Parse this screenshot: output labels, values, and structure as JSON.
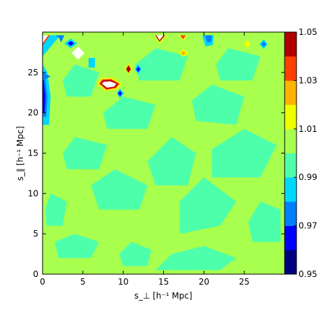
{
  "chart_data": {
    "type": "heatmap",
    "title": "",
    "xlabel": "s_⊥ [h⁻¹ Mpc]",
    "ylabel": "s_∥ [h⁻¹ Mpc]",
    "xlim": [
      0,
      30
    ],
    "ylim": [
      0,
      30
    ],
    "x_ticks": [
      0,
      5,
      10,
      15,
      20,
      25
    ],
    "y_ticks": [
      0,
      5,
      10,
      15,
      20,
      25
    ],
    "x_tick_labels": [
      "0",
      "5",
      "10",
      "15",
      "20",
      "25"
    ],
    "y_tick_labels": [
      "0",
      "5",
      "10",
      "15",
      "20",
      "25"
    ],
    "grid": false,
    "colormap": "jet",
    "colorbar": {
      "position": "right",
      "levels": [
        0.95,
        0.96,
        0.97,
        0.98,
        0.99,
        1.0,
        1.01,
        1.02,
        1.03,
        1.04,
        1.05
      ],
      "tick_labels": [
        "0.95",
        "0.97",
        "0.99",
        "1.01",
        "1.03",
        "1.05"
      ],
      "tick_values": [
        0.95,
        0.97,
        0.99,
        1.01,
        1.03,
        1.05
      ],
      "colors": [
        "#00007f",
        "#0000ff",
        "#0080ff",
        "#00d7ff",
        "#4dffaa",
        "#a9ff4e",
        "#f0ff00",
        "#ffb300",
        "#ff4000",
        "#b20000"
      ]
    },
    "background_level": 1.0,
    "regions": [
      {
        "band": [
          0.99,
          1.0
        ],
        "polygon": [
          [
            14,
            0.5
          ],
          [
            22,
            0.5
          ],
          [
            24,
            2
          ],
          [
            20,
            3.5
          ],
          [
            16,
            2.5
          ]
        ]
      },
      {
        "band": [
          0.99,
          1.0
        ],
        "polygon": [
          [
            2,
            2
          ],
          [
            6,
            2
          ],
          [
            7,
            4
          ],
          [
            4,
            5
          ],
          [
            1.5,
            4
          ]
        ]
      },
      {
        "band": [
          0.99,
          1.0
        ],
        "polygon": [
          [
            17,
            5
          ],
          [
            22,
            6
          ],
          [
            24,
            9
          ],
          [
            20,
            12
          ],
          [
            17,
            9
          ]
        ]
      },
      {
        "band": [
          0.99,
          1.0
        ],
        "polygon": [
          [
            7,
            8
          ],
          [
            12,
            8
          ],
          [
            13,
            11
          ],
          [
            9,
            13
          ],
          [
            6,
            11
          ]
        ]
      },
      {
        "band": [
          0.99,
          1.0
        ],
        "polygon": [
          [
            14,
            11
          ],
          [
            18,
            11
          ],
          [
            19,
            15
          ],
          [
            16,
            17
          ],
          [
            13,
            14
          ]
        ]
      },
      {
        "band": [
          0.99,
          1.0
        ],
        "polygon": [
          [
            21,
            12
          ],
          [
            27,
            12
          ],
          [
            29,
            16
          ],
          [
            25,
            18
          ],
          [
            21,
            15.5
          ]
        ]
      },
      {
        "band": [
          0.99,
          1.0
        ],
        "polygon": [
          [
            3,
            13
          ],
          [
            7,
            13
          ],
          [
            8,
            16
          ],
          [
            4,
            17
          ],
          [
            2.5,
            15
          ]
        ]
      },
      {
        "band": [
          0.99,
          1.0
        ],
        "polygon": [
          [
            8,
            18
          ],
          [
            13,
            18
          ],
          [
            14,
            21
          ],
          [
            10,
            22
          ],
          [
            7.5,
            20
          ]
        ]
      },
      {
        "band": [
          0.99,
          1.0
        ],
        "polygon": [
          [
            19,
            19
          ],
          [
            24,
            18.5
          ],
          [
            25,
            22
          ],
          [
            21,
            23.5
          ],
          [
            18.5,
            21.5
          ]
        ]
      },
      {
        "band": [
          0.99,
          1.0
        ],
        "polygon": [
          [
            26,
            4
          ],
          [
            29.5,
            4
          ],
          [
            29.5,
            8
          ],
          [
            27,
            9
          ],
          [
            25.5,
            6.5
          ]
        ]
      },
      {
        "band": [
          0.99,
          1.0
        ],
        "polygon": [
          [
            3,
            22
          ],
          [
            6,
            22
          ],
          [
            7,
            25
          ],
          [
            4,
            26
          ],
          [
            2.5,
            24
          ]
        ]
      },
      {
        "band": [
          0.99,
          1.0
        ],
        "polygon": [
          [
            12,
            24
          ],
          [
            17,
            24
          ],
          [
            18,
            27
          ],
          [
            14,
            28
          ],
          [
            11.5,
            26
          ]
        ]
      },
      {
        "band": [
          0.99,
          1.0
        ],
        "polygon": [
          [
            22,
            24
          ],
          [
            26,
            24
          ],
          [
            27,
            27
          ],
          [
            23,
            28
          ],
          [
            21.5,
            26
          ]
        ]
      },
      {
        "band": [
          0.99,
          1.0
        ],
        "polygon": [
          [
            0.5,
            6
          ],
          [
            2.5,
            6
          ],
          [
            3,
            9
          ],
          [
            1,
            10
          ],
          [
            0.3,
            8
          ]
        ]
      },
      {
        "band": [
          0.99,
          1.0
        ],
        "polygon": [
          [
            10,
            1
          ],
          [
            13,
            1
          ],
          [
            13.5,
            3
          ],
          [
            11,
            4
          ],
          [
            9.5,
            2.5
          ]
        ]
      },
      {
        "band": [
          0.98,
          0.99
        ],
        "polygon": [
          [
            0.0,
            18.5
          ],
          [
            0.8,
            18.5
          ],
          [
            1.0,
            22
          ],
          [
            0.6,
            25
          ],
          [
            0.0,
            26
          ]
        ]
      },
      {
        "band": [
          0.97,
          0.98
        ],
        "polygon": [
          [
            0.0,
            19.5
          ],
          [
            0.45,
            19.5
          ],
          [
            0.6,
            22
          ],
          [
            0.3,
            24.5
          ],
          [
            0.0,
            25
          ]
        ]
      },
      {
        "band": [
          0.96,
          0.97
        ],
        "polygon": [
          [
            0.0,
            20
          ],
          [
            0.25,
            20
          ],
          [
            0.35,
            22
          ],
          [
            0.15,
            24
          ],
          [
            0.0,
            24.5
          ]
        ]
      },
      {
        "band": [
          0.97,
          0.98
        ],
        "polygon": [
          [
            0.0,
            24
          ],
          [
            1.0,
            24.5
          ],
          [
            0.0,
            25
          ]
        ]
      },
      {
        "band": [
          0.98,
          0.99
        ],
        "polygon": [
          [
            0.0,
            27
          ],
          [
            2.2,
            29.6
          ],
          [
            0.0,
            29.6
          ]
        ]
      },
      {
        "band": [
          1.03,
          1.04
        ],
        "polygon": [
          [
            0.0,
            28.3
          ],
          [
            0.9,
            29.6
          ],
          [
            0.0,
            29.6
          ]
        ]
      },
      {
        "band": [
          0.97,
          0.98
        ],
        "polygon": [
          [
            1.6,
            29.6
          ],
          [
            2.2,
            29.2
          ],
          [
            2.5,
            29.6
          ]
        ]
      },
      {
        "band": [
          0.98,
          0.99
        ],
        "polygon": [
          [
            2.7,
            28.6
          ],
          [
            3.5,
            28.0
          ],
          [
            4.3,
            28.6
          ],
          [
            3.5,
            29.2
          ]
        ]
      },
      {
        "band": [
          0.96,
          0.97
        ],
        "polygon": [
          [
            3.1,
            28.6
          ],
          [
            3.5,
            28.3
          ],
          [
            3.9,
            28.6
          ],
          [
            3.5,
            28.9
          ]
        ]
      },
      {
        "band": [
          0.98,
          0.99
        ],
        "polygon": [
          [
            5.7,
            26.8
          ],
          [
            6.5,
            26.8
          ],
          [
            6.5,
            25.6
          ],
          [
            5.7,
            25.6
          ]
        ]
      },
      {
        "band": [
          1.01,
          1.02
        ],
        "polygon": [
          [
            6.8,
            23.6
          ],
          [
            7.8,
            22.7
          ],
          [
            9.2,
            22.9
          ],
          [
            9.8,
            23.6
          ],
          [
            8.6,
            24.4
          ],
          [
            7.3,
            24.3
          ]
        ]
      },
      {
        "band": [
          1.03,
          1.04
        ],
        "polygon": [
          [
            7.0,
            23.6
          ],
          [
            7.9,
            22.85
          ],
          [
            9.1,
            23.05
          ],
          [
            9.55,
            23.6
          ],
          [
            8.5,
            24.2
          ],
          [
            7.4,
            24.15
          ]
        ]
      },
      {
        "band": [
          1.04,
          1.05
        ],
        "polygon": [
          [
            7.15,
            23.6
          ],
          [
            7.95,
            22.95
          ],
          [
            9.0,
            23.15
          ],
          [
            9.35,
            23.6
          ],
          [
            8.45,
            24.05
          ],
          [
            7.5,
            24.0
          ]
        ]
      },
      {
        "band": [
          0.98,
          0.99
        ],
        "polygon": [
          [
            9.2,
            22.4
          ],
          [
            9.6,
            21.8
          ],
          [
            10.1,
            22.4
          ],
          [
            9.6,
            23.0
          ]
        ]
      },
      {
        "band": [
          0.96,
          0.97
        ],
        "polygon": [
          [
            9.35,
            22.4
          ],
          [
            9.6,
            22.05
          ],
          [
            9.85,
            22.4
          ],
          [
            9.6,
            22.75
          ]
        ]
      },
      {
        "band": [
          1.01,
          1.02
        ],
        "polygon": [
          [
            10.2,
            25.4
          ],
          [
            10.65,
            24.8
          ],
          [
            11.1,
            25.4
          ],
          [
            10.65,
            26.1
          ]
        ]
      },
      {
        "band": [
          1.04,
          1.05
        ],
        "polygon": [
          [
            10.35,
            25.4
          ],
          [
            10.65,
            24.95
          ],
          [
            10.95,
            25.4
          ],
          [
            10.65,
            25.9
          ]
        ]
      },
      {
        "band": [
          0.98,
          0.99
        ],
        "polygon": [
          [
            11.4,
            25.4
          ],
          [
            11.85,
            24.8
          ],
          [
            12.3,
            25.4
          ],
          [
            11.85,
            26.0
          ]
        ]
      },
      {
        "band": [
          0.96,
          0.97
        ],
        "polygon": [
          [
            11.6,
            25.4
          ],
          [
            11.85,
            25.05
          ],
          [
            12.1,
            25.4
          ],
          [
            11.85,
            25.75
          ]
        ]
      },
      {
        "band": [
          1.01,
          1.02
        ],
        "polygon": [
          [
            13.8,
            29.6
          ],
          [
            14.5,
            28.6
          ],
          [
            15.4,
            29.6
          ]
        ]
      },
      {
        "band": [
          1.04,
          1.05
        ],
        "polygon": [
          [
            13.95,
            29.6
          ],
          [
            14.5,
            28.8
          ],
          [
            15.2,
            29.6
          ]
        ]
      },
      {
        "band": [
          1.01,
          1.02
        ],
        "polygon": [
          [
            16.9,
            29.6
          ],
          [
            17.4,
            28.9
          ],
          [
            17.9,
            29.6
          ]
        ]
      },
      {
        "band": [
          1.03,
          1.04
        ],
        "polygon": [
          [
            17.05,
            29.6
          ],
          [
            17.4,
            29.1
          ],
          [
            17.75,
            29.6
          ]
        ]
      },
      {
        "band": [
          1.01,
          1.02
        ],
        "polygon": [
          [
            16.9,
            27.4
          ],
          [
            17.45,
            26.9
          ],
          [
            18.0,
            27.4
          ],
          [
            17.45,
            27.9
          ]
        ]
      },
      {
        "band": [
          1.02,
          1.03
        ],
        "polygon": [
          [
            17.15,
            27.4
          ],
          [
            17.45,
            27.1
          ],
          [
            17.75,
            27.4
          ],
          [
            17.45,
            27.7
          ]
        ]
      },
      {
        "band": [
          0.98,
          0.99
        ],
        "polygon": [
          [
            19.8,
            29.6
          ],
          [
            20.2,
            28.2
          ],
          [
            21.1,
            28.4
          ],
          [
            21.2,
            29.6
          ]
        ]
      },
      {
        "band": [
          0.97,
          0.98
        ],
        "polygon": [
          [
            20.1,
            29.6
          ],
          [
            20.4,
            28.7
          ],
          [
            20.9,
            28.8
          ],
          [
            21.0,
            29.6
          ]
        ]
      },
      {
        "band": [
          1.01,
          1.02
        ],
        "polygon": [
          [
            24.9,
            28.5
          ],
          [
            25.35,
            28.0
          ],
          [
            25.8,
            28.5
          ],
          [
            25.35,
            29.0
          ]
        ]
      },
      {
        "band": [
          0.98,
          0.99
        ],
        "polygon": [
          [
            26.9,
            28.5
          ],
          [
            27.4,
            27.9
          ],
          [
            27.9,
            28.5
          ],
          [
            27.4,
            29.1
          ]
        ]
      },
      {
        "band": [
          0.97,
          0.98
        ],
        "polygon": [
          [
            27.1,
            28.5
          ],
          [
            27.4,
            28.15
          ],
          [
            27.7,
            28.5
          ],
          [
            27.4,
            28.85
          ]
        ]
      },
      {
        "band": [
          0.97,
          0.98
        ],
        "polygon": [
          [
            1.9,
            29.6
          ],
          [
            2.3,
            28.7
          ],
          [
            2.7,
            29.6
          ]
        ]
      }
    ],
    "above_max_regions": [
      {
        "polygon": [
          [
            0.0,
            28.6
          ],
          [
            0.7,
            29.6
          ],
          [
            0.0,
            29.6
          ]
        ]
      },
      {
        "polygon": [
          [
            3.6,
            27.4
          ],
          [
            4.4,
            26.6
          ],
          [
            5.2,
            27.4
          ],
          [
            4.4,
            28.2
          ]
        ]
      },
      {
        "polygon": [
          [
            7.35,
            23.6
          ],
          [
            8.0,
            23.1
          ],
          [
            8.9,
            23.25
          ],
          [
            9.15,
            23.6
          ],
          [
            8.4,
            23.9
          ],
          [
            7.6,
            23.85
          ]
        ]
      },
      {
        "polygon": [
          [
            14.1,
            29.6
          ],
          [
            14.5,
            29.0
          ],
          [
            15.0,
            29.6
          ]
        ]
      }
    ]
  }
}
